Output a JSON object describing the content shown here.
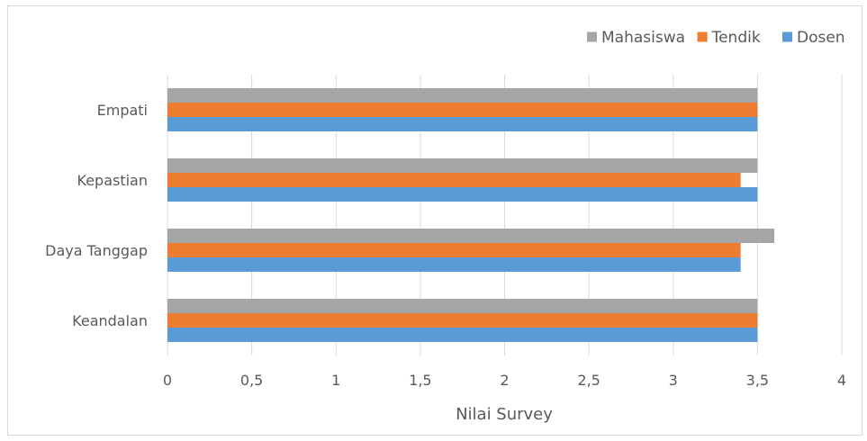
{
  "chart_data": {
    "type": "bar",
    "orientation": "horizontal",
    "categories": [
      "Keandalan",
      "Daya Tanggap",
      "Kepastian",
      "Empati"
    ],
    "series": [
      {
        "name": "Dosen",
        "color": "#5b9bd5",
        "values": [
          3.5,
          3.4,
          3.5,
          3.5
        ]
      },
      {
        "name": "Tendik",
        "color": "#ed7d31",
        "values": [
          3.5,
          3.4,
          3.4,
          3.5
        ]
      },
      {
        "name": "Mahasiswa",
        "color": "#a5a5a5",
        "values": [
          3.5,
          3.6,
          3.5,
          3.5
        ]
      }
    ],
    "x_ticks": [
      "0",
      "0,5",
      "1",
      "1,5",
      "2",
      "2,5",
      "3",
      "3,5",
      "4"
    ],
    "xlim": [
      0,
      4
    ],
    "xlabel": "Nilai Survey",
    "ylabel": "",
    "title": "",
    "legend_order": [
      "Mahasiswa",
      "Tendik",
      "Dosen"
    ],
    "legend_position": "top-right",
    "grid": "vertical"
  }
}
